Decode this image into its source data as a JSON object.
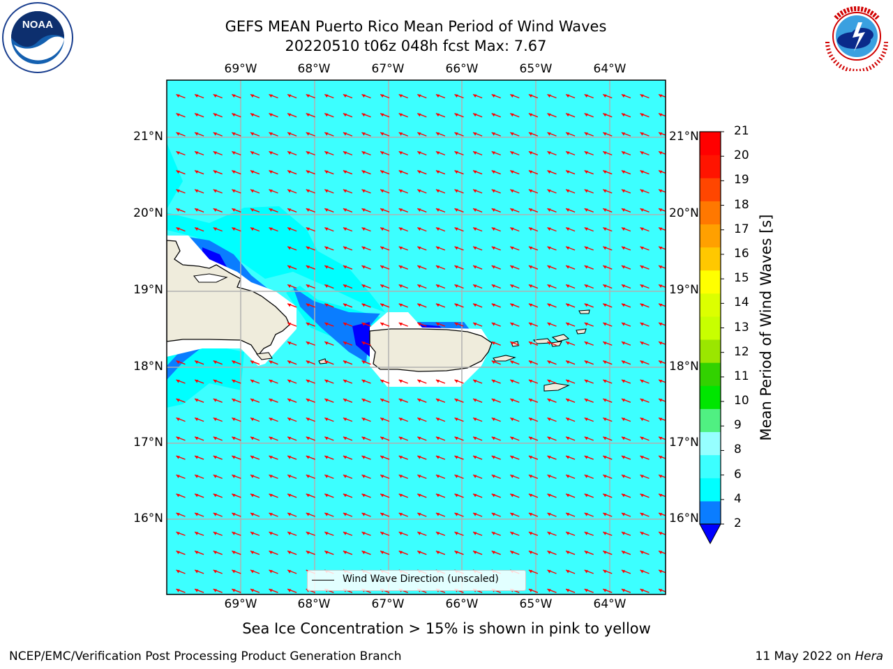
{
  "title": {
    "line1": "GEFS MEAN Puerto Rico Mean Period of Wind Waves",
    "line2": "20220510 t06z 048h fcst   Max: 7.67"
  },
  "map": {
    "longitude_labels": [
      "69°W",
      "68°W",
      "67°W",
      "66°W",
      "65°W",
      "64°W"
    ],
    "latitude_labels": [
      "21°N",
      "20°N",
      "19°N",
      "18°N",
      "17°N",
      "16°N"
    ],
    "lon_range": [
      -70.0,
      -63.25
    ],
    "lat_range": [
      15.0,
      21.75
    ],
    "ocean_color": "#00ffff",
    "land_color": "#efecdc",
    "arrow_color": "#ff0000",
    "gridlines": true,
    "wind_wave_direction": "toward west-northwest"
  },
  "legend": {
    "label": "Wind Wave Direction (unscaled)"
  },
  "colorbar": {
    "title": "Mean Period of Wind Waves [s]",
    "tick_labels": [
      "2",
      "4",
      "6",
      "8",
      "9",
      "10",
      "11",
      "12",
      "13",
      "14",
      "15",
      "16",
      "17",
      "18",
      "19",
      "20",
      "21"
    ],
    "colors": [
      "#0000ff",
      "#0a7dff",
      "#00ffff",
      "#3cffff",
      "#96ffff",
      "#50f082",
      "#00e600",
      "#32d200",
      "#9be600",
      "#c8ff00",
      "#dcff00",
      "#ffff00",
      "#ffc800",
      "#ffa000",
      "#ff7800",
      "#ff4600",
      "#ff1400",
      "#ff0000"
    ],
    "extend": "min"
  },
  "footnote": "Sea Ice Concentration > 15% is shown in pink to yellow",
  "credit": "NCEP/EMC/Verification Post Processing Product Generation Branch",
  "date": {
    "text": "11 May 2022 on ",
    "machine": "Hera"
  },
  "logos": {
    "noaa": "NOAA",
    "noaa_ring": "NATIONAL OCEANIC AND ATMOSPHERIC ADMINISTRATION · U.S. DEPARTMENT OF COMMERCE",
    "nws_ring": "NATIONAL WEATHER SERVICE"
  }
}
